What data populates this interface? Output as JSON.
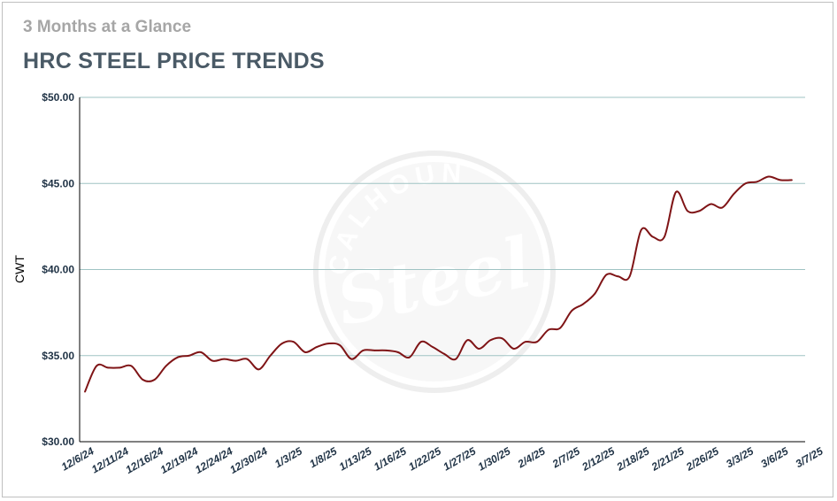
{
  "subtitle": "3 Months at a Glance",
  "title": "HRC STEEL PRICE TRENDS",
  "watermark": {
    "top": "CALHOUN",
    "script": "Steel"
  },
  "colors": {
    "line": "#7f1416",
    "grid": "#9fc3c3",
    "axis": "#1f3245",
    "title": "#4a5a66",
    "subtitle": "#a6a6a6"
  },
  "chart_data": {
    "type": "line",
    "title": "HRC STEEL PRICE TRENDS",
    "ylabel": "CWT",
    "xlabel": "",
    "ylim": [
      30,
      50
    ],
    "yticks": [
      "$30.00",
      "$35.00",
      "$40.00",
      "$45.00",
      "$50.00"
    ],
    "ytick_values": [
      30,
      35,
      40,
      45,
      50
    ],
    "x_tick_labels": [
      "12/6/24",
      "12/11/24",
      "12/16/24",
      "12/19/24",
      "12/24/24",
      "12/30/24",
      "1/3/25",
      "1/8/25",
      "1/13/25",
      "1/16/25",
      "1/22/25",
      "1/27/25",
      "1/30/25",
      "2/4/25",
      "2/7/25",
      "2/12/25",
      "2/18/25",
      "2/21/25",
      "2/26/25",
      "3/3/25",
      "3/6/25",
      "3/7/25"
    ],
    "grid": "horizontal",
    "legend": "none",
    "series": [
      {
        "values": [
          32.9,
          34.4,
          34.3,
          34.3,
          34.4,
          33.6,
          33.6,
          34.4,
          34.9,
          35.0,
          35.2,
          34.7,
          34.8,
          34.7,
          34.8,
          34.2,
          35.0,
          35.7,
          35.8,
          35.2,
          35.5,
          35.7,
          35.6,
          34.8,
          35.3,
          35.3,
          35.3,
          35.2,
          34.9,
          35.8,
          35.5,
          35.1,
          34.8,
          35.9,
          35.4,
          35.9,
          36.0,
          35.4,
          35.8,
          35.8,
          36.5,
          36.6,
          37.6,
          38.0,
          38.6,
          39.7,
          39.6,
          39.6,
          42.3,
          41.9,
          41.9,
          44.5,
          43.4,
          43.4,
          43.8,
          43.6,
          44.4,
          45.0,
          45.1,
          45.4,
          45.2,
          45.2
        ]
      }
    ]
  }
}
